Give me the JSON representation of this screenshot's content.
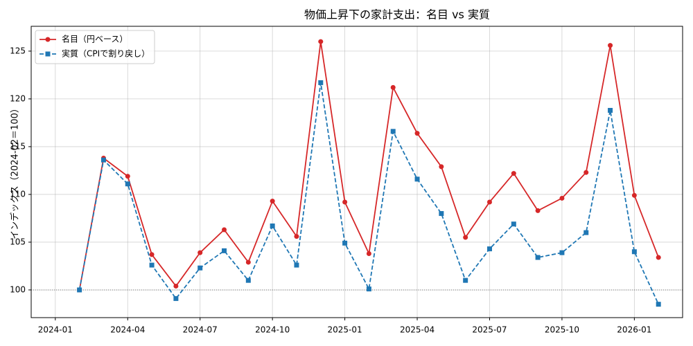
{
  "chart_data": {
    "type": "line",
    "title": "物価上昇下の家計支出：名目 vs 実質",
    "y_label": "インデックス（2024-02＝100）",
    "x": [
      "2024-02",
      "2024-03",
      "2024-04",
      "2024-05",
      "2024-06",
      "2024-07",
      "2024-08",
      "2024-09",
      "2024-10",
      "2024-11",
      "2024-12",
      "2025-01",
      "2025-02",
      "2025-03",
      "2025-04",
      "2025-05",
      "2025-06",
      "2025-07",
      "2025-08",
      "2025-09",
      "2025-10",
      "2025-11",
      "2025-12",
      "2026-01",
      "2026-02"
    ],
    "series": [
      {
        "name": "名目（円ベース）",
        "color": "#d62728",
        "marker": "circle",
        "dash": "solid",
        "values": [
          100,
          113.8,
          111.9,
          103.7,
          100.4,
          103.9,
          106.3,
          102.9,
          109.3,
          105.6,
          126.0,
          109.2,
          103.8,
          121.2,
          116.4,
          112.9,
          105.5,
          109.2,
          112.2,
          108.3,
          109.6,
          112.3,
          125.6,
          109.9,
          103.4
        ]
      },
      {
        "name": "実質（CPIで割り戻し）",
        "color": "#1f77b4",
        "marker": "square",
        "dash": "dashed",
        "values": [
          100,
          113.6,
          111.1,
          102.6,
          99.1,
          102.3,
          104.1,
          101.0,
          106.7,
          102.6,
          121.7,
          104.9,
          100.1,
          116.6,
          111.6,
          108.0,
          101.0,
          104.3,
          106.9,
          103.4,
          103.9,
          106.0,
          118.8,
          104.0,
          98.5
        ]
      }
    ],
    "reference_line": 100,
    "xlim": [
      "2023-12",
      "2026-03"
    ],
    "xticks": [
      "2024-01",
      "2024-04",
      "2024-07",
      "2024-10",
      "2025-01",
      "2025-04",
      "2025-07",
      "2025-10",
      "2026-01"
    ],
    "ylim": [
      97.1,
      127.6
    ],
    "yticks": [
      100,
      105,
      110,
      115,
      120,
      125
    ],
    "grid": true,
    "legend": "upper-left"
  }
}
